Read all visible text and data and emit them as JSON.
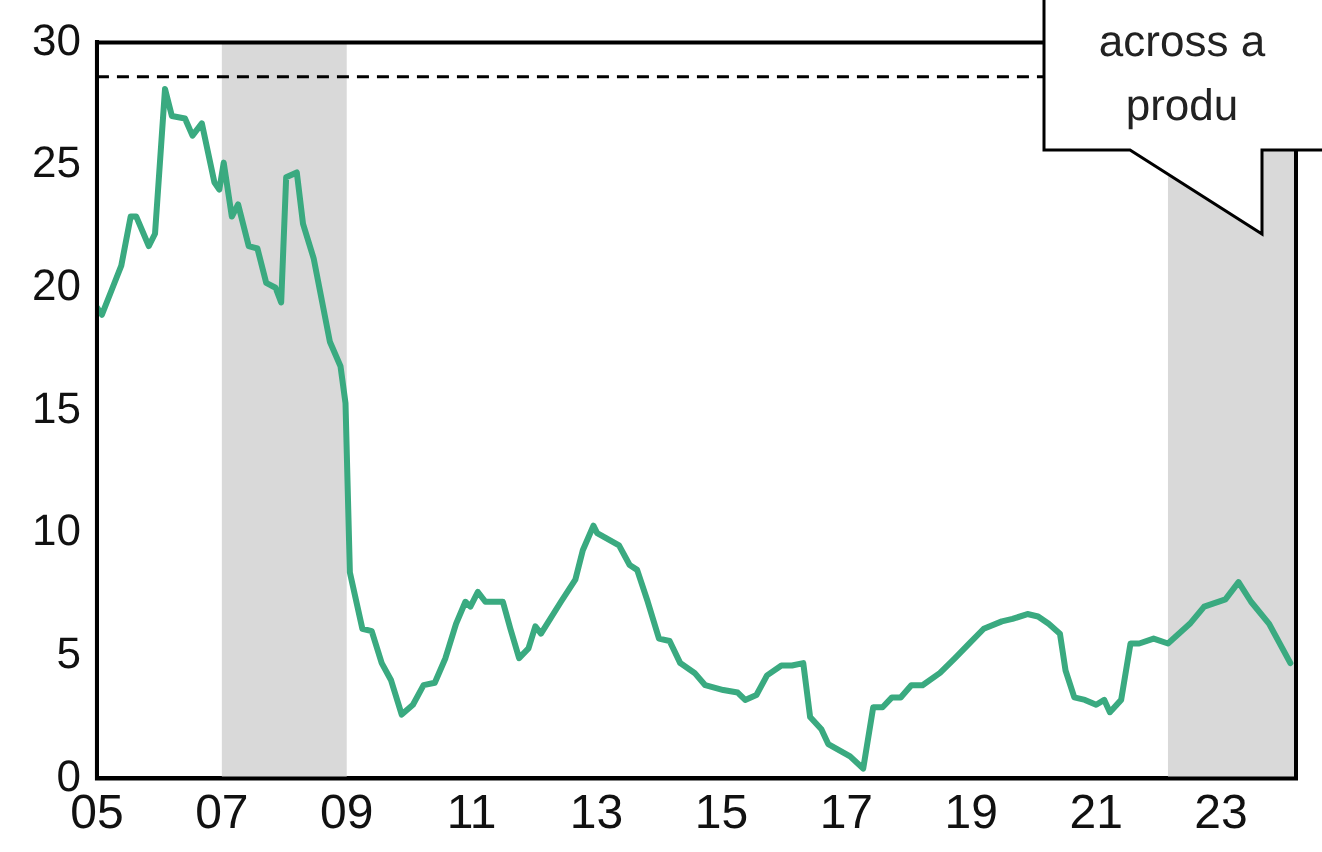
{
  "chart_data": {
    "type": "line",
    "xlim": [
      2005,
      2024.2
    ],
    "xticks": [
      {
        "value": 2005,
        "label": "05"
      },
      {
        "value": 2007,
        "label": "07"
      },
      {
        "value": 2009,
        "label": "09"
      },
      {
        "value": 2011,
        "label": "11"
      },
      {
        "value": 2013,
        "label": "13"
      },
      {
        "value": 2015,
        "label": "15"
      },
      {
        "value": 2017,
        "label": "17"
      },
      {
        "value": 2019,
        "label": "19"
      },
      {
        "value": 2021,
        "label": "21"
      },
      {
        "value": 2023,
        "label": "23"
      }
    ],
    "ylim": [
      0,
      30
    ],
    "yticks": [
      0,
      5,
      10,
      15,
      20,
      25,
      30
    ],
    "grid": false,
    "legend": false,
    "line_style": "solid",
    "marker": "none",
    "series": [
      {
        "color": "#3aaa80",
        "x": [
          2005.0,
          2005.08,
          2005.25,
          2005.39,
          2005.54,
          2005.63,
          2005.83,
          2005.93,
          2006.09,
          2006.2,
          2006.41,
          2006.53,
          2006.68,
          2006.88,
          2006.96,
          2007.03,
          2007.16,
          2007.26,
          2007.43,
          2007.57,
          2007.71,
          2007.86,
          2007.95,
          2008.03,
          2008.2,
          2008.3,
          2008.47,
          2008.73,
          2008.9,
          2008.98,
          2009.05,
          2009.25,
          2009.4,
          2009.56,
          2009.71,
          2009.88,
          2010.06,
          2010.23,
          2010.41,
          2010.58,
          2010.75,
          2010.9,
          2010.98,
          2011.1,
          2011.22,
          2011.5,
          2011.62,
          2011.76,
          2011.91,
          2012.02,
          2012.11,
          2012.43,
          2012.66,
          2012.78,
          2012.95,
          2013.01,
          2013.36,
          2013.53,
          2013.65,
          2013.82,
          2014.0,
          2014.17,
          2014.34,
          2014.57,
          2014.74,
          2015.03,
          2015.26,
          2015.38,
          2015.56,
          2015.73,
          2015.96,
          2016.13,
          2016.31,
          2016.42,
          2016.6,
          2016.71,
          2017.06,
          2017.27,
          2017.43,
          2017.58,
          2017.73,
          2017.87,
          2018.04,
          2018.22,
          2018.5,
          2018.74,
          2018.97,
          2019.2,
          2019.49,
          2019.66,
          2019.9,
          2020.07,
          2020.24,
          2020.42,
          2020.51,
          2020.65,
          2020.82,
          2021.0,
          2021.13,
          2021.22,
          2021.4,
          2021.55,
          2021.69,
          2021.92,
          2022.15,
          2022.5,
          2022.73,
          2023.07,
          2023.28,
          2023.48,
          2023.77,
          2024.11
        ],
        "values": [
          19.2,
          18.9,
          20.0,
          20.9,
          22.9,
          22.9,
          21.7,
          22.2,
          28.1,
          27.0,
          26.9,
          26.2,
          26.7,
          24.3,
          24.0,
          25.1,
          22.9,
          23.4,
          21.7,
          21.6,
          20.2,
          20.0,
          19.4,
          24.5,
          24.7,
          22.6,
          21.2,
          17.8,
          16.8,
          15.3,
          8.4,
          6.1,
          6.0,
          4.7,
          4.0,
          2.6,
          3.0,
          3.8,
          3.9,
          4.9,
          6.3,
          7.2,
          7.0,
          7.6,
          7.2,
          7.2,
          6.1,
          4.9,
          5.3,
          6.2,
          5.9,
          7.2,
          8.1,
          9.3,
          10.3,
          10.0,
          9.5,
          8.7,
          8.5,
          7.2,
          5.7,
          5.6,
          4.7,
          4.3,
          3.8,
          3.6,
          3.5,
          3.2,
          3.4,
          4.2,
          4.6,
          4.6,
          4.7,
          2.5,
          2.0,
          1.4,
          0.9,
          0.4,
          2.9,
          2.9,
          3.3,
          3.3,
          3.8,
          3.8,
          4.3,
          4.9,
          5.5,
          6.1,
          6.4,
          6.5,
          6.7,
          6.6,
          6.3,
          5.9,
          4.4,
          3.3,
          3.2,
          3.0,
          3.2,
          2.7,
          3.2,
          5.5,
          5.5,
          5.7,
          5.5,
          6.3,
          7.0,
          7.3,
          8.0,
          7.2,
          6.3,
          4.7
        ]
      }
    ],
    "ref_lines": [
      {
        "axis": "y",
        "value": 28.6,
        "color": "#000000",
        "line_style": "dashed"
      }
    ],
    "bands": [
      {
        "axis": "x",
        "from": 2007,
        "to": 2009,
        "color": "#d9d9d9"
      },
      {
        "axis": "x",
        "from": 2022.15,
        "to": 2024.2,
        "color": "#d9d9d9"
      }
    ],
    "annotations": [
      "across a produ"
    ]
  }
}
